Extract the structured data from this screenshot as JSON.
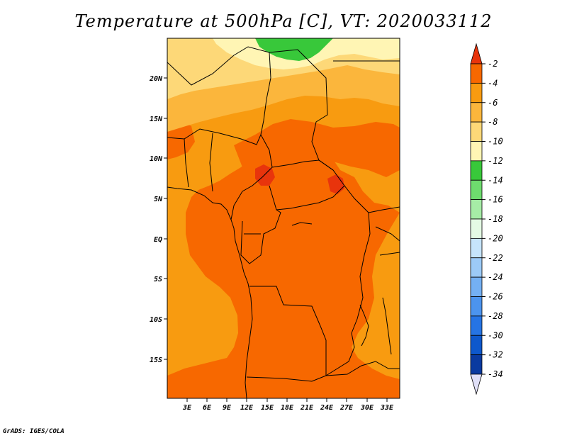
{
  "title": "Temperature at 500hPa [C], VT: 2020033112",
  "credit": "GrADS: IGES/COLA",
  "map": {
    "lat_ticks": [
      "20N",
      "15N",
      "10N",
      "5N",
      "EQ",
      "5S",
      "10S",
      "15S"
    ],
    "lon_ticks": [
      "3E",
      "6E",
      "9E",
      "12E",
      "15E",
      "18E",
      "21E",
      "24E",
      "27E",
      "30E",
      "33E"
    ]
  },
  "colorbar": {
    "labels": [
      "-2",
      "-4",
      "-6",
      "-8",
      "-10",
      "-12",
      "-14",
      "-16",
      "-18",
      "-20",
      "-22",
      "-24",
      "-26",
      "-28",
      "-30",
      "-32",
      "-34"
    ],
    "colors": [
      "#e8340c",
      "#f76800",
      "#f89b10",
      "#fbb63c",
      "#fdd878",
      "#fff5b4",
      "#38c83a",
      "#6edc6e",
      "#a6eca6",
      "#e4fae4",
      "#c6e4fb",
      "#9ccaf7",
      "#74b0f3",
      "#4c94ee",
      "#2674e4",
      "#0e58cc",
      "#0a3aa0",
      "#0a1a78"
    ],
    "top_arrow_color": "#e8340c",
    "bottom_arrow_color": "#e0e0f8"
  }
}
